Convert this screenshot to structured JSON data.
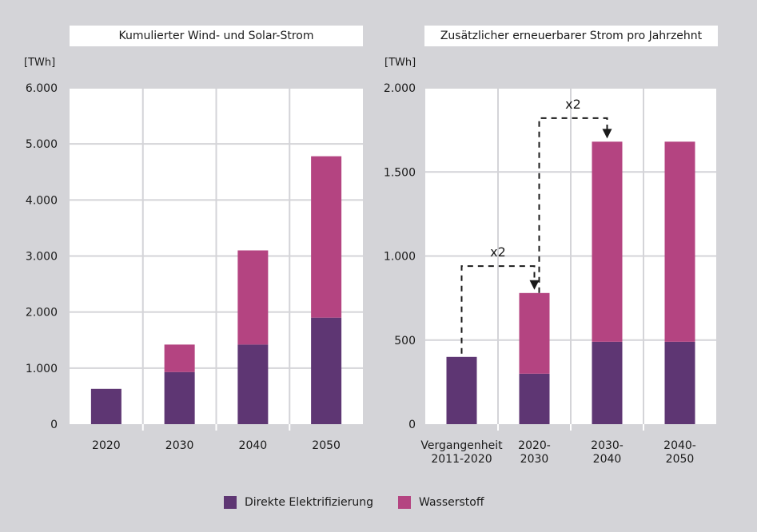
{
  "colors": {
    "background": "#d4d4d8",
    "panel": "#ffffff",
    "series_1": "#5e3673",
    "series_2": "#b44481",
    "annotation": "#1a1a1a"
  },
  "legend": {
    "items": [
      {
        "label": "Direkte Elektrifizierung",
        "color": "#5e3673"
      },
      {
        "label": "Wasserstoff",
        "color": "#b44481"
      }
    ]
  },
  "chart_data": [
    {
      "type": "bar",
      "stacked": true,
      "title": "Kumulierter Wind- und Solar-Strom",
      "unit": "[TWh]",
      "categories": [
        "2020",
        "2030",
        "2040",
        "2050"
      ],
      "series": [
        {
          "name": "Direkte Elektrifizierung",
          "values": [
            630,
            930,
            1420,
            1900
          ]
        },
        {
          "name": "Wasserstoff",
          "values": [
            0,
            490,
            1680,
            2880
          ]
        }
      ],
      "ylim": [
        0,
        6000
      ],
      "yticks": [
        0,
        1000,
        2000,
        3000,
        4000,
        5000,
        6000
      ],
      "ytick_labels": [
        "0",
        "1.000",
        "2.000",
        "3.000",
        "4.000",
        "5.000",
        "6.000"
      ],
      "grid": true
    },
    {
      "type": "bar",
      "stacked": true,
      "title": "Zusätzlicher erneuerbarer Strom pro Jahrzehnt",
      "unit": "[TWh]",
      "categories": [
        "Vergangenheit\n2011-2020",
        "2020-\n2030",
        "2030-\n2040",
        "2040-\n2050"
      ],
      "series": [
        {
          "name": "Direkte Elektrifizierung",
          "values": [
            400,
            300,
            490,
            490
          ]
        },
        {
          "name": "Wasserstoff",
          "values": [
            0,
            480,
            1190,
            1190
          ]
        }
      ],
      "ylim": [
        0,
        2000
      ],
      "yticks": [
        0,
        500,
        1000,
        1500,
        2000
      ],
      "ytick_labels": [
        "0",
        "500",
        "1.000",
        "1.500",
        "2.000"
      ],
      "grid": true,
      "annotations": [
        {
          "from_category": 0,
          "to_category": 1,
          "label": "x2"
        },
        {
          "from_category": 1,
          "to_category": 2,
          "label": "x2"
        }
      ]
    }
  ]
}
